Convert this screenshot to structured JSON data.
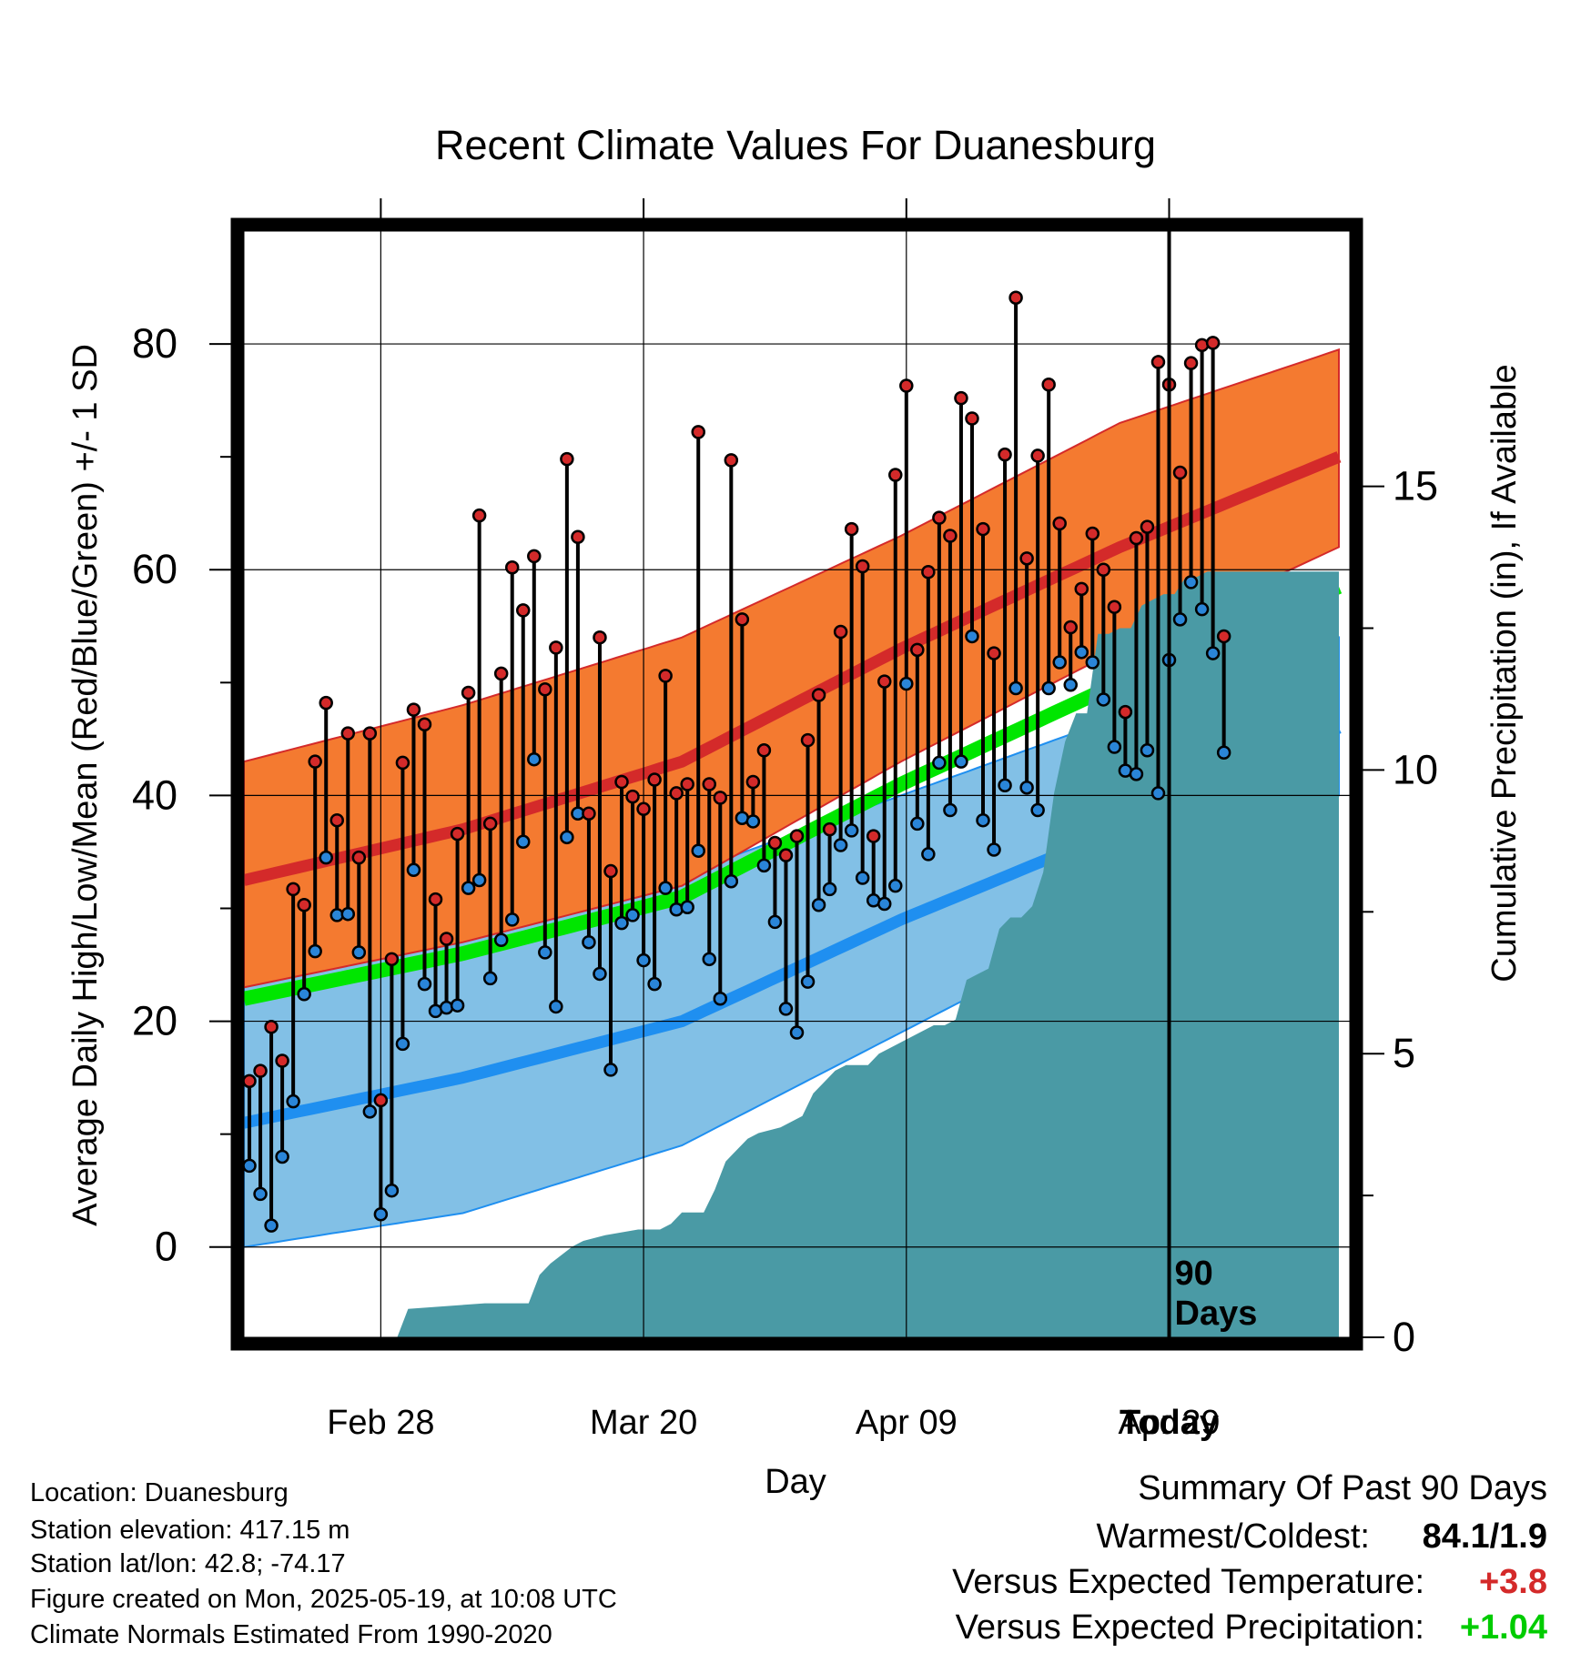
{
  "chart_data": {
    "type": "line",
    "title": "Recent Climate Values For Duanesburg",
    "xlabel": "Day",
    "ylabel": "Average Daily High/Low/Mean (Red/Blue/Green) +/- 1 SD",
    "y2label": "Cumulative Precipitation (in), If Available",
    "ylim": [
      -8,
      90
    ],
    "y2lim": [
      0,
      19.5
    ],
    "yticks": [
      "0",
      "20",
      "40",
      "60",
      "80"
    ],
    "y2ticks": [
      "0",
      "5",
      "10",
      "15"
    ],
    "xticks": [
      "Feb 28",
      "Mar 20",
      "Apr 09",
      "Apr 29",
      "Today"
    ],
    "today_marker": "90\nDays",
    "grid": true,
    "colors": {
      "high_band": "#f47a30",
      "high_line": "#d42a2a",
      "low_band": "#82c0e6",
      "low_line": "#1f8ff0",
      "mean_line": "#00e600",
      "precip": "#4a9aa5",
      "high_dot": "#d42a2a",
      "low_dot": "#2a85d8"
    },
    "normals": {
      "day": [
        0,
        20,
        40,
        60,
        80,
        100
      ],
      "high_mean": [
        32.5,
        37,
        43,
        53,
        62,
        70
      ],
      "high_upper": [
        43,
        48,
        54,
        63,
        73,
        79.5
      ],
      "high_lower": [
        23,
        27,
        32,
        43,
        53,
        62
      ],
      "low_mean": [
        11,
        15,
        20,
        29,
        37,
        46
      ],
      "low_upper": [
        24,
        28,
        33,
        40,
        47,
        54
      ],
      "low_lower": [
        0,
        3,
        9,
        19,
        29,
        40
      ],
      "mean": [
        22,
        26,
        31,
        41,
        50,
        58.5
      ]
    },
    "series": [
      {
        "name": "Daily High",
        "x": [
          0,
          1,
          2,
          3,
          4,
          5,
          6,
          7,
          8,
          9,
          10,
          11,
          12,
          13,
          14,
          15,
          16,
          17,
          18,
          19,
          20,
          21,
          22,
          23,
          24,
          25,
          26,
          27,
          28,
          29,
          30,
          31,
          32,
          33,
          34,
          35,
          36,
          37,
          38,
          39,
          40,
          41,
          42,
          43,
          44,
          45,
          46,
          47,
          48,
          49,
          50,
          51,
          52,
          53,
          54,
          55,
          56,
          57,
          58,
          59,
          60,
          61,
          62,
          63,
          64,
          65,
          66,
          67,
          68,
          69,
          70,
          71,
          72,
          73,
          74,
          75,
          76,
          77,
          78,
          79,
          80,
          81,
          82,
          83,
          84,
          85,
          86,
          87,
          88,
          89
        ],
        "values": [
          14.7,
          15.6,
          19.5,
          16.5,
          31.7,
          30.3,
          43,
          48.2,
          37.8,
          45.5,
          34.5,
          45.5,
          13,
          25.5,
          42.9,
          47.6,
          46.3,
          30.8,
          27.3,
          36.6,
          49.1,
          64.8,
          37.5,
          50.8,
          60.2,
          56.4,
          61.2,
          49.4,
          53.1,
          69.8,
          62.9,
          38.4,
          54,
          33.3,
          41.2,
          39.9,
          38.8,
          41.4,
          50.6,
          40.2,
          41,
          72.2,
          41,
          39.8,
          69.7,
          55.6,
          41.2,
          44,
          35.8,
          34.7,
          36.4,
          44.9,
          48.9,
          37,
          54.5,
          63.6,
          60.3,
          36.4,
          50.1,
          68.4,
          76.3,
          52.9,
          59.8,
          64.6,
          63,
          75.2,
          73.4,
          63.6,
          52.6,
          70.2,
          84.1,
          61,
          70.1,
          76.4,
          64.1,
          54.9,
          58.3,
          63.2,
          60,
          56.7,
          47.4,
          62.8,
          63.8,
          78.4,
          76.4,
          68.6,
          78.3,
          79.9,
          80.1,
          54.1
        ]
      },
      {
        "name": "Daily Low",
        "x": [
          0,
          1,
          2,
          3,
          4,
          5,
          6,
          7,
          8,
          9,
          10,
          11,
          12,
          13,
          14,
          15,
          16,
          17,
          18,
          19,
          20,
          21,
          22,
          23,
          24,
          25,
          26,
          27,
          28,
          29,
          30,
          31,
          32,
          33,
          34,
          35,
          36,
          37,
          38,
          39,
          40,
          41,
          42,
          43,
          44,
          45,
          46,
          47,
          48,
          49,
          50,
          51,
          52,
          53,
          54,
          55,
          56,
          57,
          58,
          59,
          60,
          61,
          62,
          63,
          64,
          65,
          66,
          67,
          68,
          69,
          70,
          71,
          72,
          73,
          74,
          75,
          76,
          77,
          78,
          79,
          80,
          81,
          82,
          83,
          84,
          85,
          86,
          87,
          88,
          89
        ],
        "values": [
          7.2,
          4.7,
          1.9,
          8,
          12.9,
          22.4,
          26.2,
          34.5,
          29.4,
          29.5,
          26.1,
          12,
          2.9,
          5,
          18,
          33.4,
          23.3,
          20.9,
          21.2,
          21.4,
          31.8,
          32.5,
          23.8,
          27.2,
          29,
          35.9,
          43.2,
          26.1,
          21.3,
          36.3,
          38.4,
          27,
          24.2,
          15.7,
          28.7,
          29.4,
          25.4,
          23.3,
          31.8,
          29.9,
          30.1,
          35.1,
          25.5,
          22,
          32.4,
          38,
          37.7,
          33.8,
          28.8,
          21.1,
          19,
          23.5,
          30.3,
          31.7,
          35.6,
          36.9,
          32.7,
          30.7,
          30.4,
          32,
          49.9,
          37.5,
          34.8,
          42.9,
          38.7,
          43,
          54.1,
          37.8,
          35.2,
          40.9,
          49.5,
          40.7,
          38.7,
          49.5,
          51.8,
          49.8,
          52.7,
          51.8,
          48.5,
          44.3,
          42.2,
          41.9,
          44,
          40.2,
          52,
          55.6,
          58.9,
          56.5,
          52.6,
          43.8
        ]
      }
    ],
    "precip": {
      "name": "Cumulative Precipitation",
      "x": [
        0,
        14,
        15,
        22,
        26,
        27,
        28,
        30,
        31,
        33,
        36,
        38,
        39,
        40,
        42,
        43,
        44,
        45,
        46,
        47,
        49,
        50,
        51,
        52,
        53,
        54,
        55,
        56,
        57,
        58,
        59,
        60,
        61,
        62,
        63,
        64,
        65,
        66,
        67,
        68,
        69,
        70,
        71,
        72,
        73,
        74,
        75,
        76,
        77,
        78,
        79,
        80,
        81,
        82,
        83,
        84,
        85,
        86,
        87,
        88,
        89,
        90
      ],
      "values": [
        0,
        0,
        0.5,
        0.6,
        0.6,
        1.1,
        1.3,
        1.6,
        1.7,
        1.8,
        1.9,
        1.9,
        2.0,
        2.2,
        2.2,
        2.6,
        3.1,
        3.3,
        3.5,
        3.6,
        3.7,
        3.8,
        3.9,
        4.3,
        4.5,
        4.7,
        4.8,
        4.8,
        4.8,
        5.0,
        5.1,
        5.2,
        5.3,
        5.4,
        5.5,
        5.5,
        5.6,
        6.3,
        6.4,
        6.5,
        7.2,
        7.4,
        7.4,
        7.6,
        8.2,
        9.6,
        10.5,
        11.0,
        11.0,
        12.4,
        12.4,
        12.5,
        12.5,
        12.9,
        13.0,
        13.1,
        13.1,
        13.4,
        13.4,
        13.5,
        13.5,
        13.5
      ]
    }
  },
  "footer": {
    "location": "Location: Duanesburg",
    "elevation": "Station elevation: 417.15 m",
    "latlon": "Station lat/lon: 42.8; -74.17",
    "created": "Figure created on Mon, 2025-05-19, at 10:08 UTC",
    "normals": "Climate Normals Estimated From 1990-2020"
  },
  "summary": {
    "title": "Summary Of Past 90 Days",
    "warmest_label": "Warmest/Coldest:",
    "warmest_value": "84.1/1.9",
    "temp_label": "Versus Expected Temperature:",
    "temp_value": "+3.8",
    "temp_color": "#d42a2a",
    "precip_label": "Versus Expected Precipitation:",
    "precip_value": "+1.04",
    "precip_color": "#00cc00"
  }
}
